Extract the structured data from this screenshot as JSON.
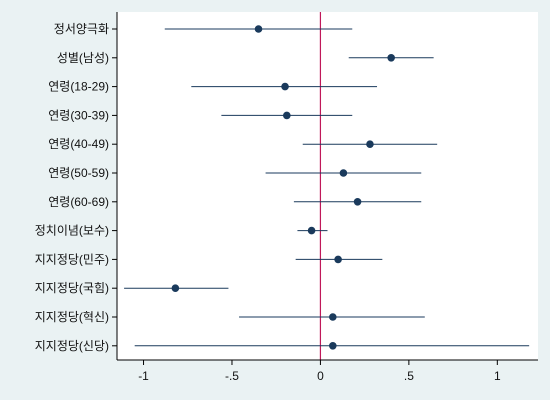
{
  "chart_data": {
    "type": "scatter",
    "subtype": "coefficient-plot-with-confidence-intervals",
    "orientation": "horizontal",
    "categories": [
      "정서양극화",
      "성별(남성)",
      "연령(18-29)",
      "연령(30-39)",
      "연령(40-49)",
      "연령(50-59)",
      "연령(60-69)",
      "정치이념(보수)",
      "지지정당(민주)",
      "지지정당(국힘)",
      "지지정당(혁신)",
      "지지정당(신당)"
    ],
    "estimates": [
      -0.35,
      0.4,
      -0.2,
      -0.19,
      0.28,
      0.13,
      0.21,
      -0.05,
      0.1,
      -0.82,
      0.07,
      0.07
    ],
    "ci_low": [
      -0.88,
      0.16,
      -0.73,
      -0.56,
      -0.1,
      -0.31,
      -0.15,
      -0.13,
      -0.14,
      -1.11,
      -0.46,
      -1.05
    ],
    "ci_high": [
      0.18,
      0.64,
      0.32,
      0.18,
      0.66,
      0.57,
      0.57,
      0.04,
      0.35,
      -0.52,
      0.59,
      1.18
    ],
    "xlim": [
      -1.15,
      1.23
    ],
    "x_ticks": [
      -1,
      -0.5,
      0,
      0.5,
      1
    ],
    "x_tick_labels": [
      "-1",
      "-.5",
      "0",
      ".5",
      "1"
    ],
    "reference_line": {
      "x": 0,
      "color": "#c0185a"
    },
    "grid": false,
    "title": "",
    "xlabel": "",
    "ylabel": "",
    "colors": {
      "background": "#eaf2f3",
      "plot_background": "#ffffff",
      "marker": "#1a3a5c",
      "ci_line": "#1a3a5c",
      "axis": "#000000"
    }
  }
}
